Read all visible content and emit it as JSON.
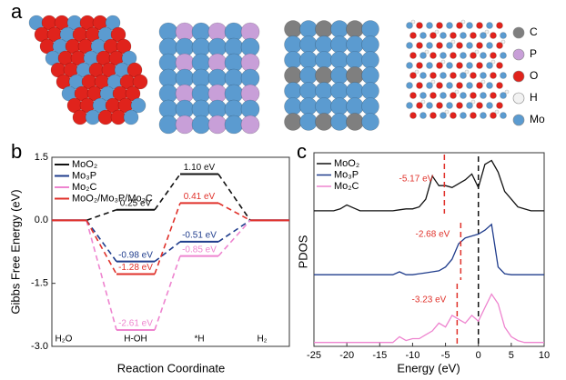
{
  "panel_a": {
    "label": "a",
    "legend": [
      {
        "name": "C",
        "color": "#7f7f7f"
      },
      {
        "name": "P",
        "color": "#c89fd8"
      },
      {
        "name": "O",
        "color": "#e0231c"
      },
      {
        "name": "H",
        "color": "#f2f2f2"
      },
      {
        "name": "Mo",
        "color": "#5b9bd0"
      }
    ]
  },
  "chart_data": [
    {
      "type": "energy_profile",
      "panel": "b",
      "xlabel": "Reaction Coordinate",
      "ylabel": "Gibbs Free Energy (eV)",
      "categories": [
        "H₂O",
        "H-OH",
        "*H",
        "H₂"
      ],
      "ylim": [
        -3.0,
        1.5
      ],
      "yticks": [
        {
          "value": -3.0,
          "label": "-3.0"
        },
        {
          "value": -1.5,
          "label": "-1.5"
        },
        {
          "value": 0,
          "label": "0.0"
        },
        {
          "value": 1.5,
          "label": "1.5"
        }
      ],
      "legend": "upper left",
      "series": [
        {
          "name": "MoO₂",
          "color": "#111111",
          "values": [
            0,
            0.25,
            1.1,
            0
          ],
          "value_labels": [
            null,
            "0.25 eV",
            "1.10 eV",
            null
          ]
        },
        {
          "name": "Mo₃P",
          "color": "#1f3c8c",
          "values": [
            0,
            -0.98,
            -0.51,
            0
          ],
          "value_labels": [
            null,
            "-0.98 eV",
            "-0.51 eV",
            null
          ]
        },
        {
          "name": "Mo₂C",
          "color": "#ee84cf",
          "values": [
            0,
            -2.61,
            -0.85,
            0
          ],
          "value_labels": [
            null,
            "-2.61 eV",
            "-0.85 eV",
            null
          ]
        },
        {
          "name": "MoO₂/Mo₃P/Mo₂C",
          "color": "#e0312a",
          "values": [
            0,
            -1.28,
            0.41,
            0
          ],
          "value_labels": [
            null,
            "-1.28 eV",
            "0.41 eV",
            null
          ]
        }
      ]
    },
    {
      "type": "line",
      "panel": "c",
      "xlabel": "Energy (eV)",
      "ylabel": "PDOS",
      "xlim": [
        -25,
        10
      ],
      "xticks": [
        -25,
        -20,
        -15,
        -10,
        -5,
        0,
        5,
        10
      ],
      "ylim": [
        0,
        10
      ],
      "legend": "upper left",
      "fermi_level": 0,
      "x": [
        -25,
        -24,
        -23,
        -22,
        -21,
        -20,
        -19,
        -18,
        -17,
        -16,
        -15,
        -14,
        -13,
        -12,
        -11,
        -10,
        -9,
        -8,
        -7,
        -6,
        -5,
        -4,
        -3,
        -2,
        -1,
        0,
        1,
        2,
        3,
        4,
        5,
        6,
        7,
        8,
        9,
        10
      ],
      "series": [
        {
          "name": "MoO₂",
          "color": "#111111",
          "d_band_center": {
            "value": -5.17,
            "label": "-5.17 eV"
          },
          "values": [
            7.0,
            7.0,
            7.0,
            7.0,
            7.1,
            7.3,
            7.15,
            7.0,
            7.0,
            7.0,
            7.0,
            7.0,
            7.0,
            7.05,
            7.1,
            7.1,
            7.2,
            7.6,
            8.8,
            8.3,
            8.3,
            8.2,
            8.4,
            8.6,
            8.9,
            8.2,
            9.4,
            9.6,
            9.0,
            8.0,
            7.6,
            7.2,
            7.1,
            7.0,
            7.0,
            7.0
          ]
        },
        {
          "name": "Mo₃P",
          "color": "#1f3c8c",
          "d_band_center": {
            "value": -2.68,
            "label": "-2.68 eV"
          },
          "values": [
            3.7,
            3.7,
            3.7,
            3.7,
            3.7,
            3.7,
            3.7,
            3.7,
            3.7,
            3.7,
            3.7,
            3.7,
            3.7,
            3.85,
            3.7,
            3.7,
            3.75,
            3.8,
            3.85,
            3.9,
            4.1,
            4.5,
            5.3,
            5.6,
            5.7,
            5.8,
            6.0,
            6.3,
            4.1,
            3.75,
            3.7,
            3.7,
            3.7,
            3.7,
            3.7,
            3.7
          ]
        },
        {
          "name": "Mo₂C",
          "color": "#ee84cf",
          "d_band_center": {
            "value": -3.23,
            "label": "-3.23 eV"
          },
          "values": [
            0.2,
            0.2,
            0.2,
            0.2,
            0.2,
            0.2,
            0.2,
            0.2,
            0.2,
            0.2,
            0.2,
            0.2,
            0.2,
            0.5,
            0.3,
            0.4,
            0.4,
            0.6,
            0.8,
            1.2,
            1.0,
            1.6,
            1.4,
            1.2,
            1.6,
            1.3,
            2.0,
            2.7,
            2.2,
            1.0,
            0.5,
            0.3,
            0.2,
            0.2,
            0.2,
            0.2
          ]
        }
      ]
    }
  ]
}
